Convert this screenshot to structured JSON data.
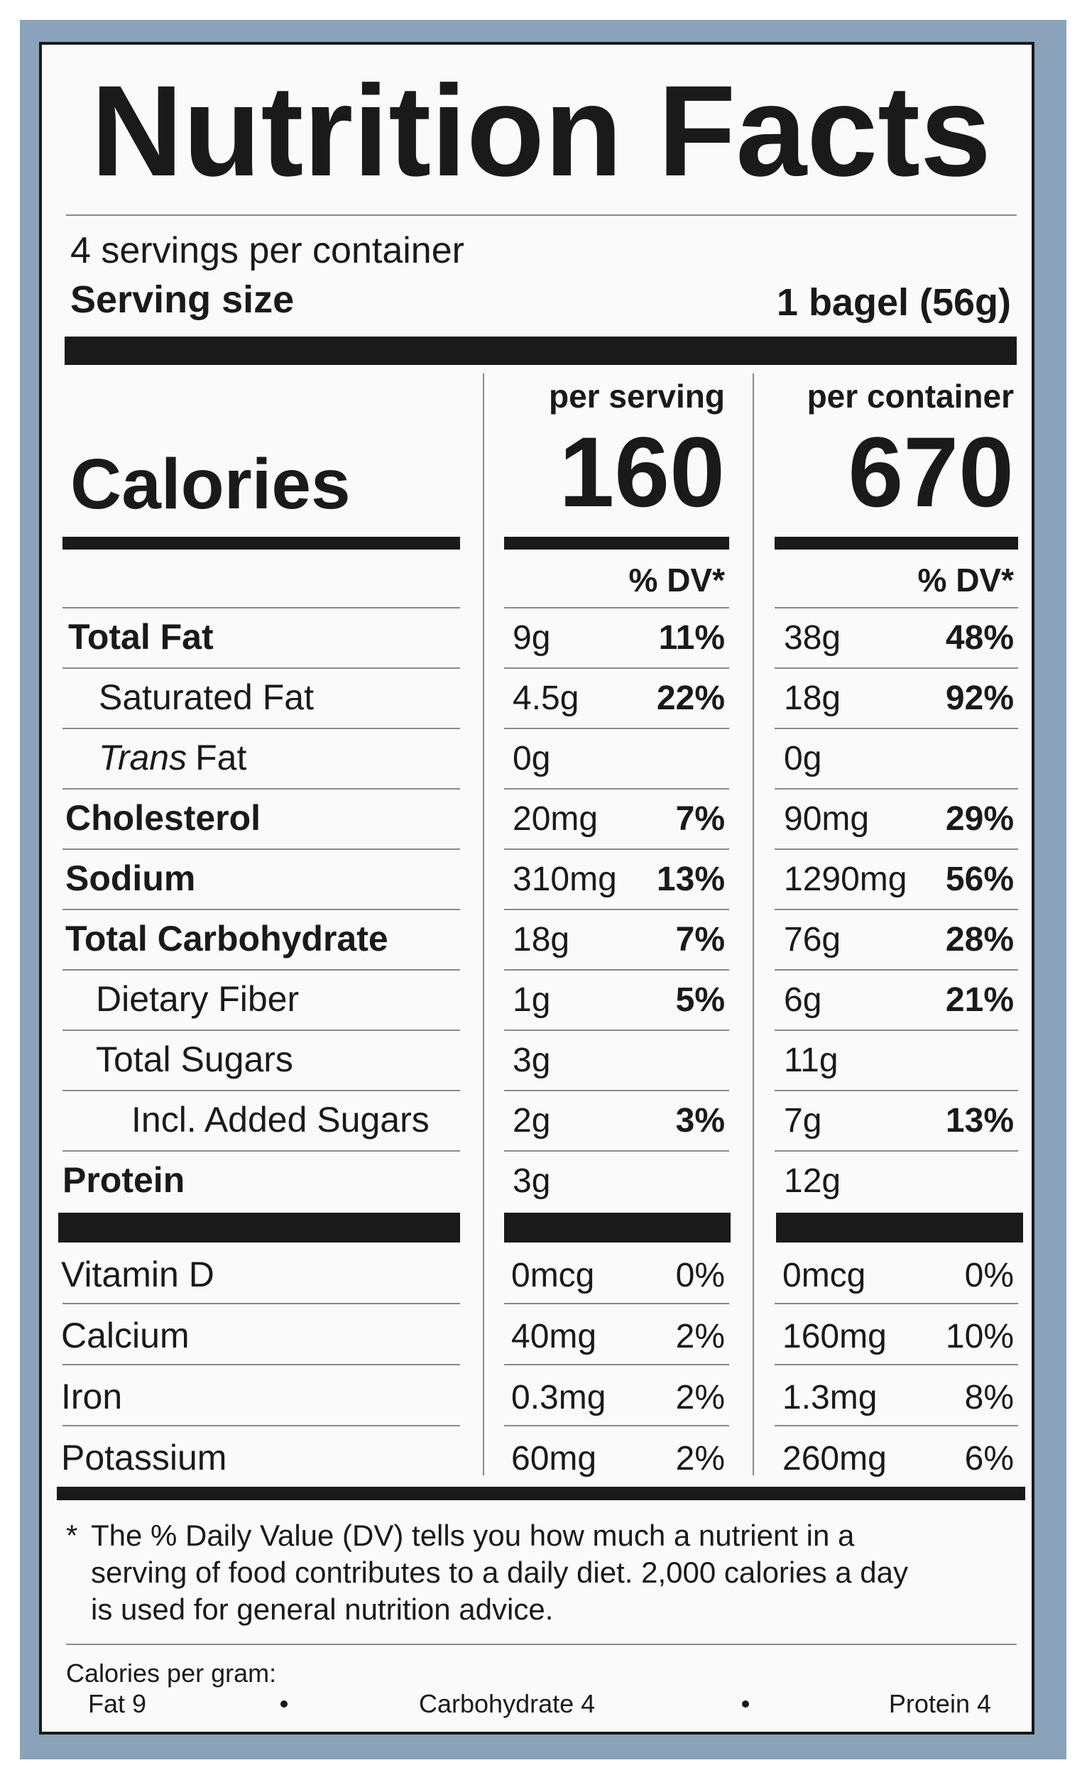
{
  "title": "Nutrition Facts",
  "servings": "4 servings per container",
  "serving_size": {
    "label": "Serving size",
    "value": "1 bagel (56g)"
  },
  "calories_label": "Calories",
  "columns": [
    {
      "header": "per serving",
      "calories": "160",
      "dv_header": "% DV*"
    },
    {
      "header": "per container",
      "calories": "670",
      "dv_header": "% DV*"
    }
  ],
  "nutrients": [
    {
      "name": "Total Fat",
      "amounts": [
        {
          "amount": "9g",
          "dv": "11%"
        },
        {
          "amount": "38g",
          "dv": "48%"
        }
      ]
    },
    {
      "name": "Saturated Fat",
      "amounts": [
        {
          "amount": "4.5g",
          "dv": "22%"
        },
        {
          "amount": "18g",
          "dv": "92%"
        }
      ]
    },
    {
      "name": {
        "italic": "Trans",
        "text": "Fat"
      },
      "amounts": [
        {
          "amount": "0g"
        },
        {
          "amount": "0g"
        }
      ]
    },
    {
      "name": "Cholesterol",
      "amounts": [
        {
          "amount": "20mg",
          "dv": "7%"
        },
        {
          "amount": "90mg",
          "dv": "29%"
        }
      ]
    },
    {
      "name": "Sodium",
      "amounts": [
        {
          "amount": "310mg",
          "dv": "13%"
        },
        {
          "amount": "1290mg",
          "dv": "56%"
        }
      ]
    },
    {
      "name": "Total Carbohydrate",
      "amounts": [
        {
          "amount": "18g",
          "dv": "7%"
        },
        {
          "amount": "76g",
          "dv": "28%"
        }
      ]
    },
    {
      "name": "Dietary Fiber",
      "amounts": [
        {
          "amount": "1g",
          "dv": "5%"
        },
        {
          "amount": "6g",
          "dv": "21%"
        }
      ]
    },
    {
      "name": "Total Sugars",
      "amounts": [
        {
          "amount": "3g"
        },
        {
          "amount": "11g"
        }
      ]
    },
    {
      "name": "Incl. Added Sugars",
      "amounts": [
        {
          "amount": "2g",
          "dv": "3%"
        },
        {
          "amount": "7g",
          "dv": "13%"
        }
      ]
    },
    {
      "name": "Protein",
      "amounts": [
        {
          "amount": "3g"
        },
        {
          "amount": "12g"
        }
      ]
    }
  ],
  "vitamins": [
    {
      "name": "Vitamin D",
      "amounts": [
        {
          "amount": "0mcg",
          "dv": "0%"
        },
        {
          "amount": "0mcg",
          "dv": "0%"
        }
      ]
    },
    {
      "name": "Calcium",
      "amounts": [
        {
          "amount": "40mg",
          "dv": "2%"
        },
        {
          "amount": "160mg",
          "dv": "10%"
        }
      ]
    },
    {
      "name": "Iron",
      "amounts": [
        {
          "amount": "0.3mg",
          "dv": "2%"
        },
        {
          "amount": "1.3mg",
          "dv": "8%"
        }
      ]
    },
    {
      "name": "Potassium",
      "amounts": [
        {
          "amount": "60mg",
          "dv": "2%"
        },
        {
          "amount": "260mg",
          "dv": "6%"
        }
      ]
    }
  ],
  "footnote": {
    "marker": "*",
    "lines": [
      "The % Daily Value (DV) tells you how much a nutrient in a",
      "serving of food contributes to a daily diet. 2,000 calories a day",
      "is used for general nutrition advice."
    ]
  },
  "calories_per_gram": {
    "label": "Calories per gram:",
    "items": [
      "Fat 9",
      "Carbohydrate 4",
      "Protein 4"
    ]
  }
}
